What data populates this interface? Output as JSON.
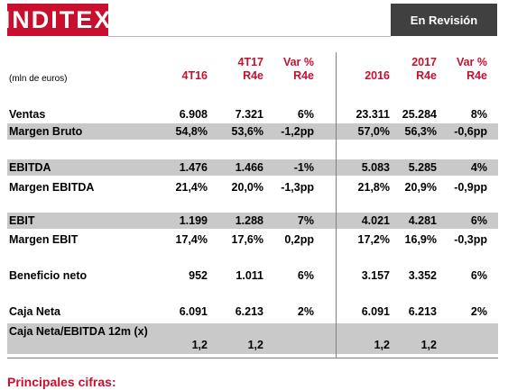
{
  "header": {
    "logo_text": "INDITEX",
    "badge": "En Revisión",
    "unit_label": "(mln de euros)"
  },
  "columns": [
    {
      "line1": "",
      "line2": "4T16"
    },
    {
      "line1": "4T17",
      "line2": "R4e"
    },
    {
      "line1": "Var %",
      "line2": "R4e"
    },
    {
      "line1": "",
      "line2": "2016"
    },
    {
      "line1": "2017",
      "line2": "R4e"
    },
    {
      "line1": "Var %",
      "line2": "R4e"
    }
  ],
  "rows": [
    {
      "label": "Ventas",
      "values": [
        "6.908",
        "7.321",
        "6%",
        "23.311",
        "25.284",
        "8%"
      ],
      "shaded": false
    },
    {
      "label": "Margen Bruto",
      "values": [
        "54,8%",
        "53,6%",
        "-1,2pp",
        "57,0%",
        "56,3%",
        "-0,6pp"
      ],
      "shaded": true
    },
    {
      "label": "EBITDA",
      "values": [
        "1.476",
        "1.466",
        "-1%",
        "5.083",
        "5.285",
        "4%"
      ],
      "shaded": true
    },
    {
      "label": "Margen EBITDA",
      "values": [
        "21,4%",
        "20,0%",
        "-1,3pp",
        "21,8%",
        "20,9%",
        "-0,9pp"
      ],
      "shaded": false
    },
    {
      "label": "EBIT",
      "values": [
        "1.199",
        "1.288",
        "7%",
        "4.021",
        "4.281",
        "6%"
      ],
      "shaded": true
    },
    {
      "label": "Margen EBIT",
      "values": [
        "17,4%",
        "17,6%",
        "0,2pp",
        "17,2%",
        "16,9%",
        "-0,3pp"
      ],
      "shaded": false
    },
    {
      "label": "Beneficio neto",
      "values": [
        "952",
        "1.011",
        "6%",
        "3.157",
        "3.352",
        "6%"
      ],
      "shaded": false
    },
    {
      "label": "Caja Neta",
      "values": [
        "6.091",
        "6.213",
        "2%",
        "6.091",
        "6.213",
        "2%"
      ],
      "shaded": false
    },
    {
      "label": "Caja Neta/EBITDA 12m (x)",
      "values": [
        "1,2",
        "1,2",
        "",
        "1,2",
        "1,2",
        ""
      ],
      "shaded": true
    }
  ],
  "footer": {
    "subtitle": "Principales cifras:"
  }
}
